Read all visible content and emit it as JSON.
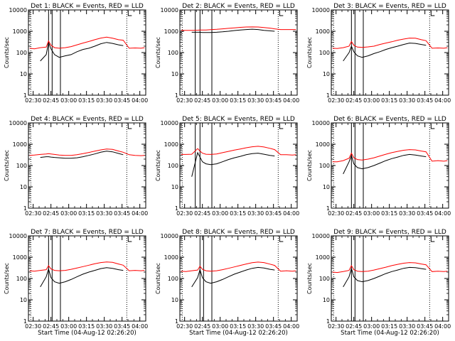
{
  "chart_data": {
    "type": "line",
    "y_scale": "log",
    "ylim": [
      1,
      10000
    ],
    "y_ticks": [
      1,
      10,
      100,
      1000,
      10000
    ],
    "ylabel": "Counts/sec",
    "xlim": [
      "02:26",
      "04:05"
    ],
    "x_ticks": [
      "02:30",
      "02:45",
      "03:00",
      "03:15",
      "03:30",
      "03:45",
      "04:00"
    ],
    "xlabel": "Start Time (04-Aug-12 02:26:20)",
    "colors": {
      "events": "#000000",
      "lld": "#ff0000"
    },
    "dotted_lines": [
      "02:28",
      "03:49"
    ],
    "panels": [
      {
        "title": "Det 1: BLACK = Events, RED = LLD",
        "show_xlabel": false,
        "vertical_lines": [
          "02:43",
          "02:46",
          "02:53"
        ],
        "times": [
          "02:27",
          "02:31",
          "02:36",
          "02:41",
          "02:43",
          "02:45",
          "02:48",
          "02:52",
          "02:57",
          "03:02",
          "03:07",
          "03:12",
          "03:17",
          "03:22",
          "03:27",
          "03:32",
          "03:37",
          "03:42",
          "03:46",
          "03:51",
          "03:56",
          "04:01",
          "04:04"
        ],
        "series": [
          {
            "name": "Events",
            "values": [
              null,
              null,
              40,
              80,
              300,
              150,
              80,
              60,
              70,
              80,
              110,
              140,
              160,
              200,
              260,
              300,
              270,
              230,
              210,
              null,
              null,
              null,
              null
            ]
          },
          {
            "name": "LLD",
            "values": [
              160,
              150,
              170,
              180,
              350,
              220,
              170,
              160,
              170,
              190,
              230,
              280,
              330,
              400,
              480,
              530,
              470,
              400,
              380,
              160,
              165,
              160,
              170
            ]
          }
        ]
      },
      {
        "title": "Det 2: BLACK = Events, RED = LLD",
        "show_xlabel": false,
        "vertical_lines": [
          "02:39",
          "02:43",
          "02:53"
        ],
        "times": [
          "02:27",
          "02:31",
          "02:36",
          "02:41",
          "02:43",
          "02:45",
          "02:48",
          "02:52",
          "02:57",
          "03:02",
          "03:07",
          "03:12",
          "03:17",
          "03:22",
          "03:27",
          "03:32",
          "03:37",
          "03:42",
          "03:46",
          "03:51",
          "03:56",
          "04:01",
          "04:04"
        ],
        "series": [
          {
            "name": "Events",
            "values": [
              null,
              null,
              900,
              900,
              900,
              880,
              870,
              880,
              900,
              940,
              1000,
              1080,
              1150,
              1200,
              1250,
              1200,
              1100,
              1050,
              1000,
              null,
              null,
              null,
              null
            ]
          },
          {
            "name": "LLD",
            "values": [
              1100,
              1100,
              1100,
              1120,
              1150,
              1150,
              1150,
              1180,
              1230,
              1300,
              1370,
              1450,
              1520,
              1580,
              1600,
              1580,
              1500,
              1400,
              1300,
              1200,
              1200,
              1200,
              1200
            ]
          }
        ]
      },
      {
        "title": "Det 3: BLACK = Events, RED = LLD",
        "show_xlabel": false,
        "vertical_lines": [
          "02:43",
          "02:46",
          "02:53"
        ],
        "times": [
          "02:27",
          "02:31",
          "02:36",
          "02:41",
          "02:43",
          "02:45",
          "02:48",
          "02:52",
          "02:57",
          "03:02",
          "03:07",
          "03:12",
          "03:17",
          "03:22",
          "03:27",
          "03:32",
          "03:37",
          "03:42",
          "03:46",
          "03:51",
          "03:56",
          "04:01",
          "04:04"
        ],
        "series": [
          {
            "name": "Events",
            "values": [
              null,
              null,
              40,
              100,
              200,
              110,
              70,
              60,
              70,
              90,
              110,
              140,
              170,
              200,
              240,
              280,
              270,
              240,
              220,
              null,
              null,
              null,
              null
            ]
          },
          {
            "name": "LLD",
            "values": [
              160,
              155,
              170,
              200,
              330,
              220,
              180,
              175,
              185,
              200,
              240,
              280,
              320,
              380,
              430,
              480,
              470,
              400,
              360,
              160,
              165,
              160,
              170
            ]
          }
        ]
      },
      {
        "title": "Det 4: BLACK = Events, RED = LLD",
        "show_xlabel": false,
        "vertical_lines": [],
        "times": [
          "02:27",
          "02:31",
          "02:36",
          "02:41",
          "02:43",
          "02:45",
          "02:48",
          "02:52",
          "02:57",
          "03:02",
          "03:07",
          "03:12",
          "03:17",
          "03:22",
          "03:27",
          "03:32",
          "03:37",
          "03:42",
          "03:46",
          "03:51",
          "03:56",
          "04:01",
          "04:04"
        ],
        "series": [
          {
            "name": "Events",
            "values": [
              null,
              null,
              240,
              260,
              260,
              250,
              240,
              230,
              220,
              220,
              230,
              260,
              300,
              350,
              420,
              470,
              440,
              370,
              320,
              null,
              null,
              null,
              null
            ]
          },
          {
            "name": "LLD",
            "values": [
              300,
              310,
              330,
              350,
              360,
              350,
              330,
              310,
              300,
              300,
              320,
              360,
              410,
              470,
              540,
              600,
              570,
              480,
              420,
              320,
              300,
              290,
              300
            ]
          }
        ]
      },
      {
        "title": "Det 5: BLACK = Events, RED = LLD",
        "show_xlabel": false,
        "vertical_lines": [
          "02:39",
          "02:43",
          "02:53"
        ],
        "times": [
          "02:27",
          "02:31",
          "02:36",
          "02:41",
          "02:43",
          "02:45",
          "02:48",
          "02:52",
          "02:57",
          "03:02",
          "03:07",
          "03:12",
          "03:17",
          "03:22",
          "03:27",
          "03:32",
          "03:37",
          "03:42",
          "03:46",
          "03:51",
          "03:56",
          "04:01",
          "04:04"
        ],
        "series": [
          {
            "name": "Events",
            "values": [
              null,
              null,
              30,
              400,
              250,
              150,
              120,
              110,
              120,
              150,
              190,
              230,
              270,
              320,
              360,
              380,
              340,
              300,
              280,
              null,
              null,
              null,
              null
            ]
          },
          {
            "name": "LLD",
            "values": [
              330,
              330,
              340,
              620,
              480,
              380,
              340,
              330,
              350,
              400,
              460,
              530,
              600,
              680,
              760,
              800,
              740,
              640,
              560,
              320,
              320,
              310,
              320
            ]
          }
        ]
      },
      {
        "title": "Det 6: BLACK = Events, RED = LLD",
        "show_xlabel": false,
        "vertical_lines": [
          "02:43",
          "02:46",
          "02:53"
        ],
        "times": [
          "02:27",
          "02:31",
          "02:36",
          "02:41",
          "02:43",
          "02:45",
          "02:48",
          "02:52",
          "02:57",
          "03:02",
          "03:07",
          "03:12",
          "03:17",
          "03:22",
          "03:27",
          "03:32",
          "03:37",
          "03:42",
          "03:46",
          "03:51",
          "03:56",
          "04:01",
          "04:04"
        ],
        "series": [
          {
            "name": "Events",
            "values": [
              null,
              null,
              40,
              150,
              300,
              120,
              80,
              70,
              80,
              100,
              130,
              170,
              210,
              250,
              300,
              330,
              310,
              280,
              260,
              null,
              null,
              null,
              null
            ]
          },
          {
            "name": "LLD",
            "values": [
              150,
              150,
              170,
              220,
              380,
              230,
              190,
              180,
              200,
              230,
              280,
              340,
              400,
              460,
              520,
              560,
              540,
              480,
              440,
              160,
              170,
              160,
              170
            ]
          }
        ]
      },
      {
        "title": "Det 7: BLACK = Events, RED = LLD",
        "show_xlabel": true,
        "vertical_lines": [
          "02:43",
          "02:46",
          "02:53"
        ],
        "times": [
          "02:27",
          "02:31",
          "02:36",
          "02:41",
          "02:43",
          "02:45",
          "02:48",
          "02:52",
          "02:57",
          "03:02",
          "03:07",
          "03:12",
          "03:17",
          "03:22",
          "03:27",
          "03:32",
          "03:37",
          "03:42",
          "03:46",
          "03:51",
          "03:56",
          "04:01",
          "04:04"
        ],
        "series": [
          {
            "name": "Events",
            "values": [
              null,
              null,
              40,
              120,
              280,
              110,
              70,
              60,
              70,
              90,
              120,
              160,
              200,
              240,
              290,
              320,
              300,
              260,
              240,
              null,
              null,
              null,
              null
            ]
          },
          {
            "name": "LLD",
            "values": [
              230,
              220,
              240,
              260,
              400,
              280,
              240,
              230,
              240,
              270,
              310,
              360,
              420,
              490,
              560,
              600,
              570,
              480,
              420,
              230,
              240,
              230,
              240
            ]
          }
        ]
      },
      {
        "title": "Det 8: BLACK = Events, RED = LLD",
        "show_xlabel": true,
        "vertical_lines": [
          "02:43",
          "02:46",
          "02:53"
        ],
        "times": [
          "02:27",
          "02:31",
          "02:36",
          "02:41",
          "02:43",
          "02:45",
          "02:48",
          "02:52",
          "02:57",
          "03:02",
          "03:07",
          "03:12",
          "03:17",
          "03:22",
          "03:27",
          "03:32",
          "03:37",
          "03:42",
          "03:46",
          "03:51",
          "03:56",
          "04:01",
          "04:04"
        ],
        "series": [
          {
            "name": "Events",
            "values": [
              null,
              null,
              40,
              110,
              260,
              110,
              70,
              60,
              70,
              90,
              120,
              160,
              200,
              250,
              300,
              330,
              310,
              270,
              250,
              null,
              null,
              null,
              null
            ]
          },
          {
            "name": "LLD",
            "values": [
              220,
              210,
              230,
              250,
              380,
              270,
              230,
              220,
              230,
              260,
              300,
              350,
              410,
              480,
              550,
              590,
              560,
              470,
              410,
              220,
              230,
              220,
              230
            ]
          }
        ]
      },
      {
        "title": "Det 9: BLACK = Events, RED = LLD",
        "show_xlabel": true,
        "vertical_lines": [
          "02:43",
          "02:46",
          "02:53"
        ],
        "times": [
          "02:27",
          "02:31",
          "02:36",
          "02:41",
          "02:43",
          "02:45",
          "02:48",
          "02:52",
          "02:57",
          "03:02",
          "03:07",
          "03:12",
          "03:17",
          "03:22",
          "03:27",
          "03:32",
          "03:37",
          "03:42",
          "03:46",
          "03:51",
          "03:56",
          "04:01",
          "04:04"
        ],
        "series": [
          {
            "name": "Events",
            "values": [
              null,
              null,
              40,
              120,
              300,
              120,
              80,
              70,
              80,
              100,
              130,
              170,
              210,
              250,
              300,
              330,
              320,
              290,
              270,
              null,
              null,
              null,
              null
            ]
          },
          {
            "name": "LLD",
            "values": [
              200,
              190,
              210,
              240,
              400,
              260,
              220,
              210,
              220,
              250,
              290,
              340,
              400,
              460,
              520,
              560,
              540,
              480,
              440,
              210,
              220,
              210,
              220
            ]
          }
        ]
      }
    ]
  }
}
